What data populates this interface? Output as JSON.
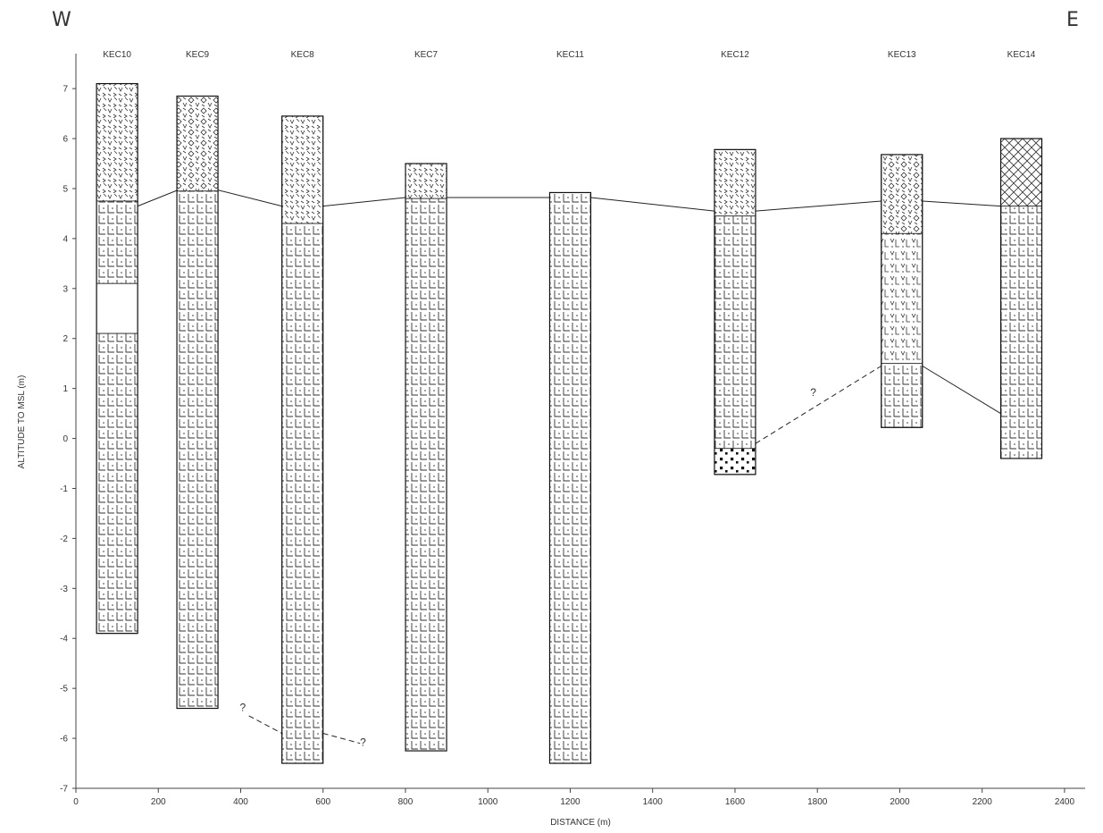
{
  "directions": {
    "west": "W",
    "east": "E"
  },
  "axes": {
    "xlabel": "DISTANCE (m)",
    "ylabel": "ALTITUDE TO MSL (m)",
    "xlim": [
      0,
      2450
    ],
    "ylim": [
      -7,
      7.7
    ],
    "xticks": [
      0,
      200,
      400,
      600,
      800,
      1000,
      1200,
      1400,
      1600,
      1800,
      2000,
      2200,
      2400
    ],
    "yticks": [
      7,
      6,
      5,
      4,
      3,
      2,
      1,
      0,
      -1,
      -2,
      -3,
      -4,
      -5,
      -6,
      -7
    ]
  },
  "chart_data": {
    "type": "diagram",
    "title": "",
    "xlabel": "DISTANCE (m)",
    "ylabel": "ALTITUDE TO MSL (m)",
    "xlim": [
      0,
      2450
    ],
    "ylim": [
      -7,
      7.7
    ],
    "boreholes": [
      {
        "name": "KEC10",
        "x": 100,
        "top": 7.1,
        "bottom": -3.9,
        "layers": [
          {
            "from": 7.1,
            "to": 4.75,
            "pattern": "dune"
          },
          {
            "from": 4.75,
            "to": 3.1,
            "pattern": "clay"
          },
          {
            "from": 3.1,
            "to": 2.1,
            "pattern": "blank"
          },
          {
            "from": 2.1,
            "to": -3.9,
            "pattern": "clay"
          }
        ]
      },
      {
        "name": "KEC9",
        "x": 295,
        "top": 6.85,
        "bottom": -5.4,
        "layers": [
          {
            "from": 6.85,
            "to": 4.95,
            "pattern": "dune-diamond"
          },
          {
            "from": 4.95,
            "to": -5.4,
            "pattern": "clay"
          }
        ]
      },
      {
        "name": "KEC8",
        "x": 550,
        "top": 6.45,
        "bottom": -6.5,
        "layers": [
          {
            "from": 6.45,
            "to": 4.3,
            "pattern": "dune"
          },
          {
            "from": 4.3,
            "to": -6.5,
            "pattern": "clay"
          }
        ]
      },
      {
        "name": "KEC7",
        "x": 850,
        "top": 5.5,
        "bottom": -6.25,
        "layers": [
          {
            "from": 5.5,
            "to": 4.8,
            "pattern": "dune"
          },
          {
            "from": 4.8,
            "to": -6.25,
            "pattern": "clay"
          }
        ]
      },
      {
        "name": "KEC11",
        "x": 1200,
        "top": 4.92,
        "bottom": -6.5,
        "layers": [
          {
            "from": 4.92,
            "to": -6.5,
            "pattern": "clay"
          }
        ]
      },
      {
        "name": "KEC12",
        "x": 1600,
        "top": 5.78,
        "bottom": -0.72,
        "layers": [
          {
            "from": 5.78,
            "to": 4.45,
            "pattern": "dune"
          },
          {
            "from": 4.45,
            "to": -0.2,
            "pattern": "clay"
          },
          {
            "from": -0.2,
            "to": -0.72,
            "pattern": "gravel"
          }
        ]
      },
      {
        "name": "KEC13",
        "x": 2005,
        "top": 5.68,
        "bottom": 0.22,
        "layers": [
          {
            "from": 5.68,
            "to": 4.1,
            "pattern": "dune-diamond"
          },
          {
            "from": 4.1,
            "to": 1.5,
            "pattern": "mixed"
          },
          {
            "from": 1.5,
            "to": 0.22,
            "pattern": "clay"
          }
        ]
      },
      {
        "name": "KEC14",
        "x": 2295,
        "top": 6.0,
        "bottom": -0.4,
        "layers": [
          {
            "from": 6.0,
            "to": 4.65,
            "pattern": "cross"
          },
          {
            "from": 4.65,
            "to": -0.4,
            "pattern": "clay"
          }
        ]
      }
    ],
    "correlation_lines": [
      {
        "style": "solid",
        "points": [
          [
            150,
            4.65
          ],
          [
            250,
            4.98
          ],
          [
            340,
            4.98
          ],
          [
            500,
            4.65
          ],
          [
            600,
            4.65
          ],
          [
            800,
            4.82
          ],
          [
            900,
            4.82
          ],
          [
            1150,
            4.82
          ],
          [
            1250,
            4.82
          ],
          [
            1550,
            4.55
          ],
          [
            1650,
            4.55
          ],
          [
            1955,
            4.75
          ],
          [
            2055,
            4.75
          ],
          [
            2245,
            4.65
          ]
        ]
      },
      {
        "style": "solid",
        "points": [
          [
            2055,
            1.45
          ],
          [
            2245,
            0.5
          ]
        ]
      },
      {
        "style": "dashed",
        "points": [
          [
            1650,
            -0.1
          ],
          [
            1955,
            1.45
          ]
        ]
      },
      {
        "style": "dashed",
        "points": [
          [
            420,
            -5.55
          ],
          [
            500,
            -5.9
          ]
        ]
      },
      {
        "style": "dashed",
        "points": [
          [
            600,
            -5.9
          ],
          [
            690,
            -6.1
          ]
        ]
      }
    ],
    "annotations": [
      {
        "text": "?",
        "x": 1790,
        "y": 0.85
      },
      {
        "text": "?",
        "x": 405,
        "y": -5.45
      },
      {
        "text": "?",
        "x": 697,
        "y": -6.15
      }
    ]
  }
}
